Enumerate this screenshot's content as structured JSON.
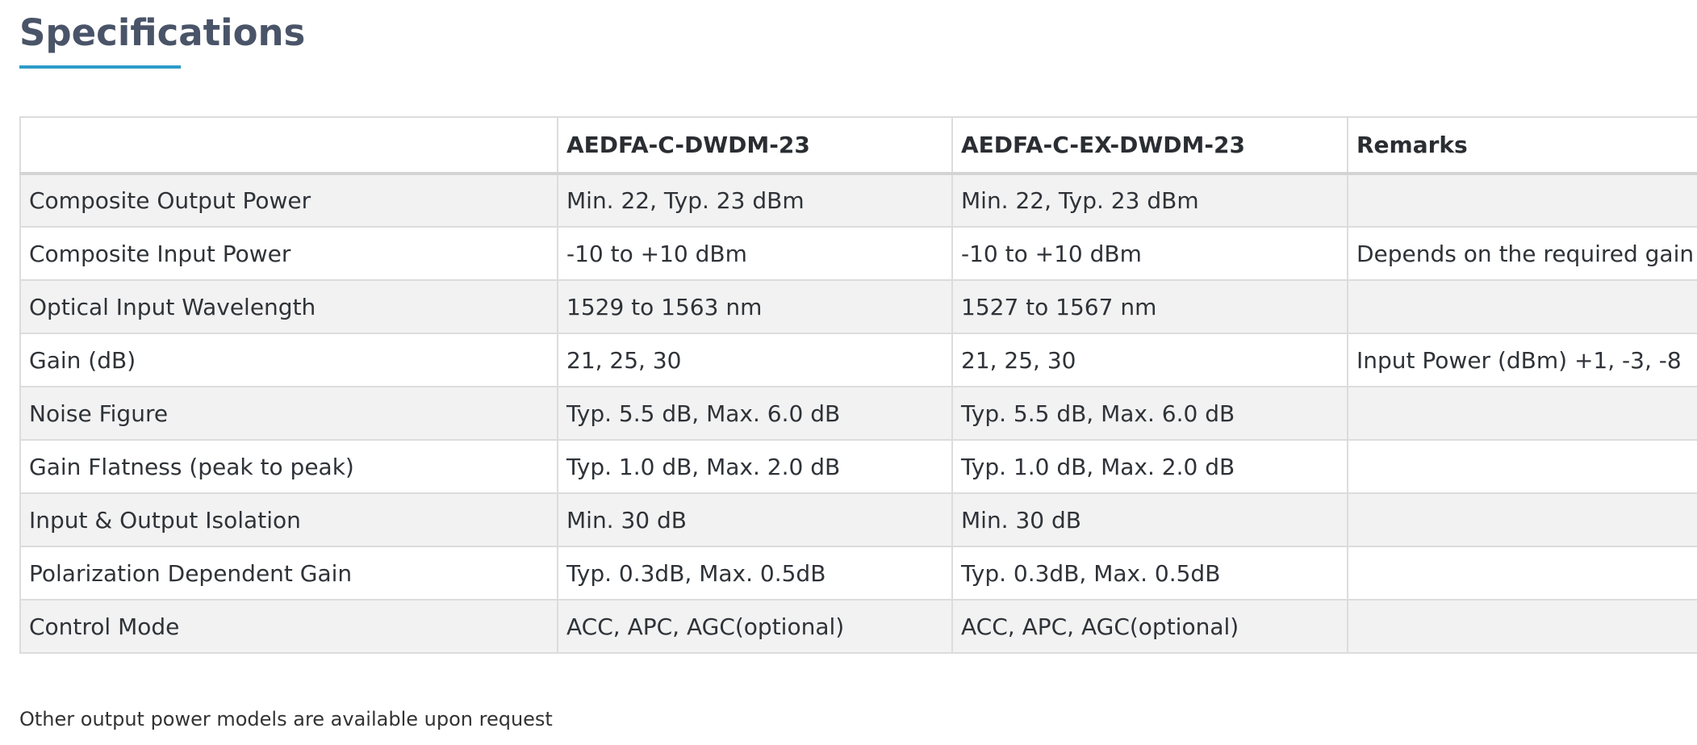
{
  "page": {
    "title": "Specifications",
    "footnote": "Other output power models are available upon request"
  },
  "colors": {
    "heading": "#4a5468",
    "accent_underline": "#2e9cc9",
    "row_shade": "#f2f2f2",
    "border": "#dcdcdc",
    "text": "#2f3338"
  },
  "table": {
    "headers": [
      "",
      "AEDFA-C-DWDM-23",
      "AEDFA-C-EX-DWDM-23",
      "Remarks"
    ],
    "rows": [
      [
        "Composite Output Power",
        "Min. 22, Typ. 23 dBm",
        "Min. 22, Typ. 23 dBm",
        ""
      ],
      [
        "Composite Input Power",
        "-10 to +10 dBm",
        "-10 to +10 dBm",
        "Depends on the required gain"
      ],
      [
        "Optical Input Wavelength",
        "1529 to 1563 nm",
        "1527 to 1567 nm",
        ""
      ],
      [
        "Gain (dB)",
        "21, 25, 30",
        "21, 25, 30",
        "Input Power (dBm) +1, -3, -8"
      ],
      [
        "Noise Figure",
        "Typ. 5.5 dB, Max. 6.0 dB",
        "Typ. 5.5 dB, Max. 6.0 dB",
        ""
      ],
      [
        "Gain Flatness (peak to peak)",
        "Typ. 1.0 dB, Max. 2.0 dB",
        "Typ. 1.0 dB, Max. 2.0 dB",
        ""
      ],
      [
        "Input & Output Isolation",
        "Min. 30 dB",
        "Min. 30 dB",
        ""
      ],
      [
        "Polarization Dependent Gain",
        "Typ. 0.3dB, Max. 0.5dB",
        "Typ. 0.3dB, Max. 0.5dB",
        ""
      ],
      [
        "Control Mode",
        "ACC, APC, AGC(optional)",
        "ACC, APC, AGC(optional)",
        ""
      ]
    ]
  }
}
